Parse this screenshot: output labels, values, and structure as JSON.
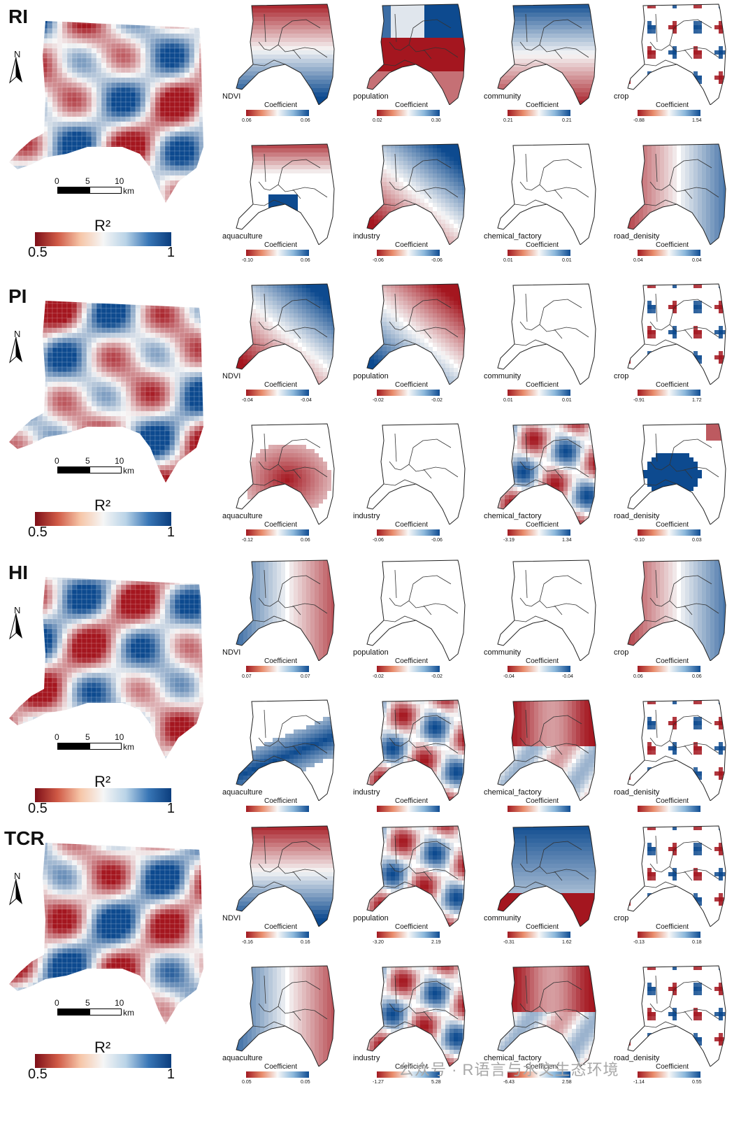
{
  "rows": [
    {
      "label": "RI",
      "panels": [
        {
          "name": "NDVI",
          "min": "0.06",
          "max": "0.06",
          "pattern": "hmix"
        },
        {
          "name": "population",
          "min": "0.02",
          "max": "0.30",
          "pattern": "band"
        },
        {
          "name": "community",
          "min": "0.21",
          "max": "0.21",
          "pattern": "bluetop"
        },
        {
          "name": "crop",
          "min": "-0.88",
          "max": "1.54",
          "pattern": "sparse"
        },
        {
          "name": "aquaculture",
          "min": "-0.10",
          "max": "0.06",
          "pattern": "redtop"
        },
        {
          "name": "industry",
          "min": "-0.06",
          "max": "-0.06",
          "pattern": "diag"
        },
        {
          "name": "chemical_factory",
          "min": "0.01",
          "max": "0.01",
          "pattern": "empty"
        },
        {
          "name": "road_denisity",
          "min": "0.04",
          "max": "0.04",
          "pattern": "lr"
        }
      ]
    },
    {
      "label": "PI",
      "panels": [
        {
          "name": "NDVI",
          "min": "-0.04",
          "max": "-0.04",
          "pattern": "diag"
        },
        {
          "name": "population",
          "min": "-0.02",
          "max": "-0.02",
          "pattern": "diagrev"
        },
        {
          "name": "community",
          "min": "0.01",
          "max": "0.01",
          "pattern": "empty"
        },
        {
          "name": "crop",
          "min": "-0.91",
          "max": "1.72",
          "pattern": "sparse"
        },
        {
          "name": "aquaculture",
          "min": "-0.12",
          "max": "0.06",
          "pattern": "redblob"
        },
        {
          "name": "industry",
          "min": "-0.06",
          "max": "-0.06",
          "pattern": "empty"
        },
        {
          "name": "chemical_factory",
          "min": "-3.19",
          "max": "1.34",
          "pattern": "mixed"
        },
        {
          "name": "road_denisity",
          "min": "-0.10",
          "max": "0.03",
          "pattern": "blueblob"
        }
      ]
    },
    {
      "label": "HI",
      "panels": [
        {
          "name": "NDVI",
          "min": "0.07",
          "max": "0.07",
          "pattern": "rl"
        },
        {
          "name": "population",
          "min": "-0.02",
          "max": "-0.02",
          "pattern": "empty"
        },
        {
          "name": "community",
          "min": "-0.04",
          "max": "-0.04",
          "pattern": "empty"
        },
        {
          "name": "crop",
          "min": "0.06",
          "max": "0.06",
          "pattern": "lr"
        },
        {
          "name": "aquaculture",
          "min": "",
          "max": "",
          "pattern": "bluestripe"
        },
        {
          "name": "industry",
          "min": "",
          "max": "",
          "pattern": "mixed"
        },
        {
          "name": "chemical_factory",
          "min": "",
          "max": "",
          "pattern": "redtopmix"
        },
        {
          "name": "road_denisity",
          "min": "",
          "max": "",
          "pattern": "sparse"
        }
      ]
    },
    {
      "label": "TCR",
      "panels": [
        {
          "name": "NDVI",
          "min": "-0.16",
          "max": "0.16",
          "pattern": "hmix"
        },
        {
          "name": "population",
          "min": "-3.20",
          "max": "2.19",
          "pattern": "mixed"
        },
        {
          "name": "community",
          "min": "-0.31",
          "max": "1.62",
          "pattern": "bluetopred"
        },
        {
          "name": "crop",
          "min": "-0.13",
          "max": "0.18",
          "pattern": "sparse"
        },
        {
          "name": "aquaculture",
          "min": "0.05",
          "max": "0.05",
          "pattern": "rl"
        },
        {
          "name": "industry",
          "min": "-1.27",
          "max": "5.28",
          "pattern": "mixed"
        },
        {
          "name": "chemical_factory",
          "min": "-6.43",
          "max": "2.58",
          "pattern": "redtopmix"
        },
        {
          "name": "road_denisity",
          "min": "-1.14",
          "max": "0.55",
          "pattern": "sparse"
        }
      ]
    }
  ],
  "north_label": "N",
  "scalebar": {
    "t0": "0",
    "t5": "5",
    "t10": "10",
    "unit": "km"
  },
  "r2": {
    "title": "R²",
    "min": "0.5",
    "max": "1"
  },
  "coef_title": "Coefficient",
  "watermark": "公众号 · R语言与水文生态环境",
  "colors": {
    "red": "#a4161f",
    "blue": "#0d4a8f",
    "white": "#f7f7f7"
  }
}
